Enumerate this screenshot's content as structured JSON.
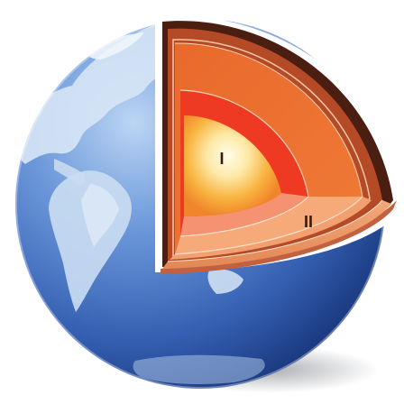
{
  "labels": {
    "inner_core": "I",
    "outer_core": "II"
  },
  "colors": {
    "ocean_light": "#8fb6ea",
    "ocean_mid": "#3f6fc2",
    "ocean_dark": "#1d3f86",
    "land_light": "#e9f2fb",
    "land_mid": "#a9c6e8",
    "crust": "#4a1e10",
    "upper_mantle": "#b54a26",
    "lower_mantle": "#ea6a2a",
    "outer_core": "#ee3a22",
    "inner_core_center": "#fffbe2",
    "inner_core_edge": "#f4a22a",
    "floor_top": "#f19a66",
    "floor_shadow": "#c26140"
  }
}
